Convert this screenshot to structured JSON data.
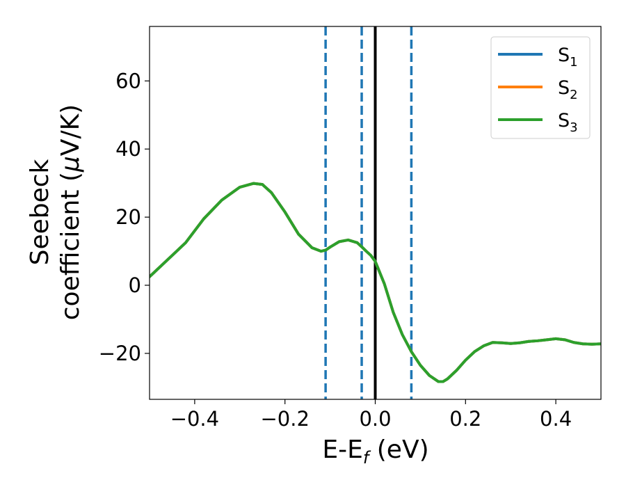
{
  "chart_data": {
    "type": "line",
    "xlabel": {
      "main": "E-E",
      "sub": "f",
      "suffix": " (eV)"
    },
    "ylabel": {
      "line1": "Seebeck",
      "line2_prefix": "coefficient  (",
      "mu": "μ",
      "line2_suffix": "V/K)"
    },
    "xlim": [
      -0.5,
      0.5
    ],
    "ylim": [
      -33.5,
      76
    ],
    "xticks": [
      -0.4,
      -0.2,
      0.0,
      0.2,
      0.4
    ],
    "xtick_labels": [
      "−0.4",
      "−0.2",
      "0.0",
      "0.2",
      "0.4"
    ],
    "yticks": [
      -20,
      0,
      20,
      40,
      60
    ],
    "ytick_labels": [
      "−20",
      "0",
      "20",
      "40",
      "60"
    ],
    "grid": false,
    "legend_position": "top-right",
    "vlines_solid": [
      {
        "x": 0.0,
        "color": "#000000"
      }
    ],
    "vlines_dashed": [
      {
        "x": -0.11,
        "color": "#1f77b4"
      },
      {
        "x": -0.03,
        "color": "#1f77b4"
      },
      {
        "x": 0.08,
        "color": "#1f77b4"
      }
    ],
    "series": [
      {
        "name": "S",
        "sub": "1",
        "color": "#1f77b4",
        "x": [
          -0.5,
          -0.46,
          -0.42,
          -0.38,
          -0.34,
          -0.3,
          -0.27,
          -0.25,
          -0.23,
          -0.2,
          -0.17,
          -0.14,
          -0.12,
          -0.11,
          -0.1,
          -0.08,
          -0.06,
          -0.04,
          -0.03,
          -0.02,
          -0.01,
          0.0,
          0.02,
          0.04,
          0.06,
          0.08,
          0.1,
          0.12,
          0.14,
          0.15,
          0.16,
          0.18,
          0.2,
          0.22,
          0.24,
          0.26,
          0.28,
          0.3,
          0.32,
          0.34,
          0.36,
          0.38,
          0.4,
          0.42,
          0.44,
          0.46,
          0.48,
          0.5
        ],
        "y": [
          2.5,
          7.5,
          12.5,
          19.5,
          25.0,
          28.8,
          29.9,
          29.6,
          27.2,
          21.5,
          15.0,
          11.0,
          10.0,
          10.3,
          11.2,
          12.8,
          13.3,
          12.5,
          11.3,
          10.0,
          8.8,
          7.0,
          0.5,
          -8.0,
          -14.5,
          -19.5,
          -23.5,
          -26.5,
          -28.3,
          -28.3,
          -27.5,
          -25.0,
          -22.0,
          -19.5,
          -17.8,
          -16.8,
          -16.9,
          -17.1,
          -16.9,
          -16.5,
          -16.3,
          -16.0,
          -15.7,
          -16.0,
          -16.8,
          -17.2,
          -17.3,
          -17.2
        ]
      },
      {
        "name": "S",
        "sub": "2",
        "color": "#ff7f0e",
        "x": [
          -0.5,
          -0.46,
          -0.42,
          -0.38,
          -0.34,
          -0.3,
          -0.27,
          -0.25,
          -0.23,
          -0.2,
          -0.17,
          -0.14,
          -0.12,
          -0.11,
          -0.1,
          -0.08,
          -0.06,
          -0.04,
          -0.03,
          -0.02,
          -0.01,
          0.0,
          0.02,
          0.04,
          0.06,
          0.08,
          0.1,
          0.12,
          0.14,
          0.15,
          0.16,
          0.18,
          0.2,
          0.22,
          0.24,
          0.26,
          0.28,
          0.3,
          0.32,
          0.34,
          0.36,
          0.38,
          0.4,
          0.42,
          0.44,
          0.46,
          0.48,
          0.5
        ],
        "y": [
          2.5,
          7.5,
          12.5,
          19.5,
          25.0,
          28.8,
          29.9,
          29.6,
          27.2,
          21.5,
          15.0,
          11.0,
          10.0,
          10.3,
          11.2,
          12.8,
          13.3,
          12.5,
          11.3,
          10.0,
          8.8,
          7.0,
          0.5,
          -8.0,
          -14.5,
          -19.5,
          -23.5,
          -26.5,
          -28.3,
          -28.3,
          -27.5,
          -25.0,
          -22.0,
          -19.5,
          -17.8,
          -16.8,
          -16.9,
          -17.1,
          -16.9,
          -16.5,
          -16.3,
          -16.0,
          -15.7,
          -16.0,
          -16.8,
          -17.2,
          -17.3,
          -17.2
        ]
      },
      {
        "name": "S",
        "sub": "3",
        "color": "#2ca02c",
        "x": [
          -0.5,
          -0.46,
          -0.42,
          -0.38,
          -0.34,
          -0.3,
          -0.27,
          -0.25,
          -0.23,
          -0.2,
          -0.17,
          -0.14,
          -0.12,
          -0.11,
          -0.1,
          -0.08,
          -0.06,
          -0.04,
          -0.03,
          -0.02,
          -0.01,
          0.0,
          0.02,
          0.04,
          0.06,
          0.08,
          0.1,
          0.12,
          0.14,
          0.15,
          0.16,
          0.18,
          0.2,
          0.22,
          0.24,
          0.26,
          0.28,
          0.3,
          0.32,
          0.34,
          0.36,
          0.38,
          0.4,
          0.42,
          0.44,
          0.46,
          0.48,
          0.5
        ],
        "y": [
          2.5,
          7.5,
          12.5,
          19.5,
          25.0,
          28.8,
          29.9,
          29.6,
          27.2,
          21.5,
          15.0,
          11.0,
          10.0,
          10.3,
          11.2,
          12.8,
          13.3,
          12.5,
          11.3,
          10.0,
          8.8,
          7.0,
          0.5,
          -8.0,
          -14.5,
          -19.5,
          -23.5,
          -26.5,
          -28.3,
          -28.3,
          -27.5,
          -25.0,
          -22.0,
          -19.5,
          -17.8,
          -16.8,
          -16.9,
          -17.1,
          -16.9,
          -16.5,
          -16.3,
          -16.0,
          -15.7,
          -16.0,
          -16.8,
          -17.2,
          -17.3,
          -17.2
        ]
      }
    ]
  }
}
